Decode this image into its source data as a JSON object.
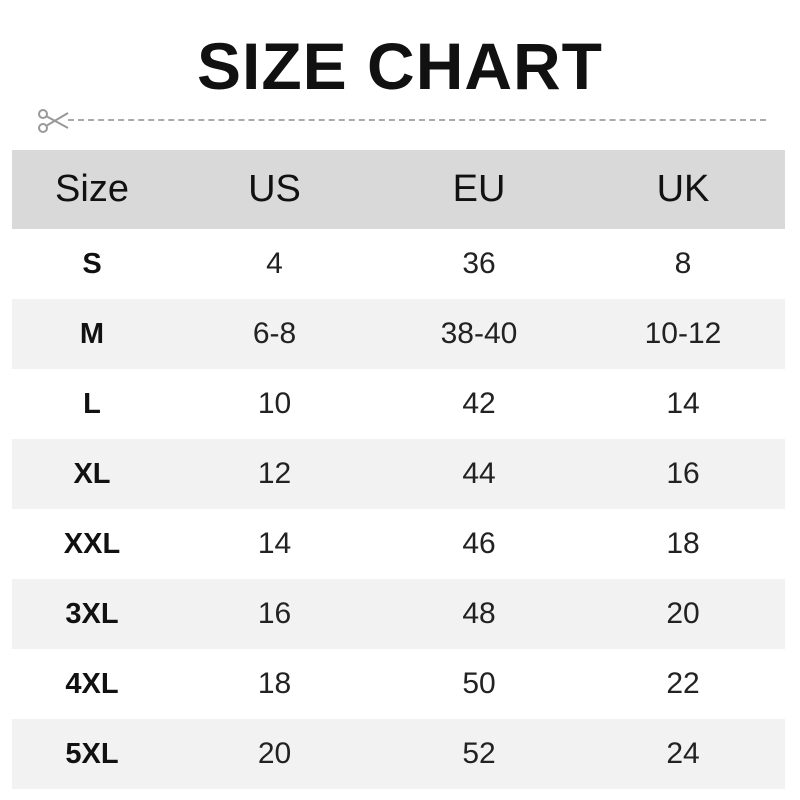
{
  "title": "SIZE CHART",
  "headers": [
    "Size",
    "US",
    "EU",
    "UK"
  ],
  "rows": [
    [
      "S",
      "4",
      "36",
      "8"
    ],
    [
      "M",
      "6-8",
      "38-40",
      "10-12"
    ],
    [
      "L",
      "10",
      "42",
      "14"
    ],
    [
      "XL",
      "12",
      "44",
      "16"
    ],
    [
      "XXL",
      "14",
      "46",
      "18"
    ],
    [
      "3XL",
      "16",
      "48",
      "20"
    ],
    [
      "4XL",
      "18",
      "50",
      "22"
    ],
    [
      "5XL",
      "20",
      "52",
      "24"
    ]
  ],
  "colors": {
    "header_bg": "#d9d9d9",
    "alt_row_bg": "#f2f2f2"
  },
  "icons": {
    "cut": "scissors-icon"
  }
}
